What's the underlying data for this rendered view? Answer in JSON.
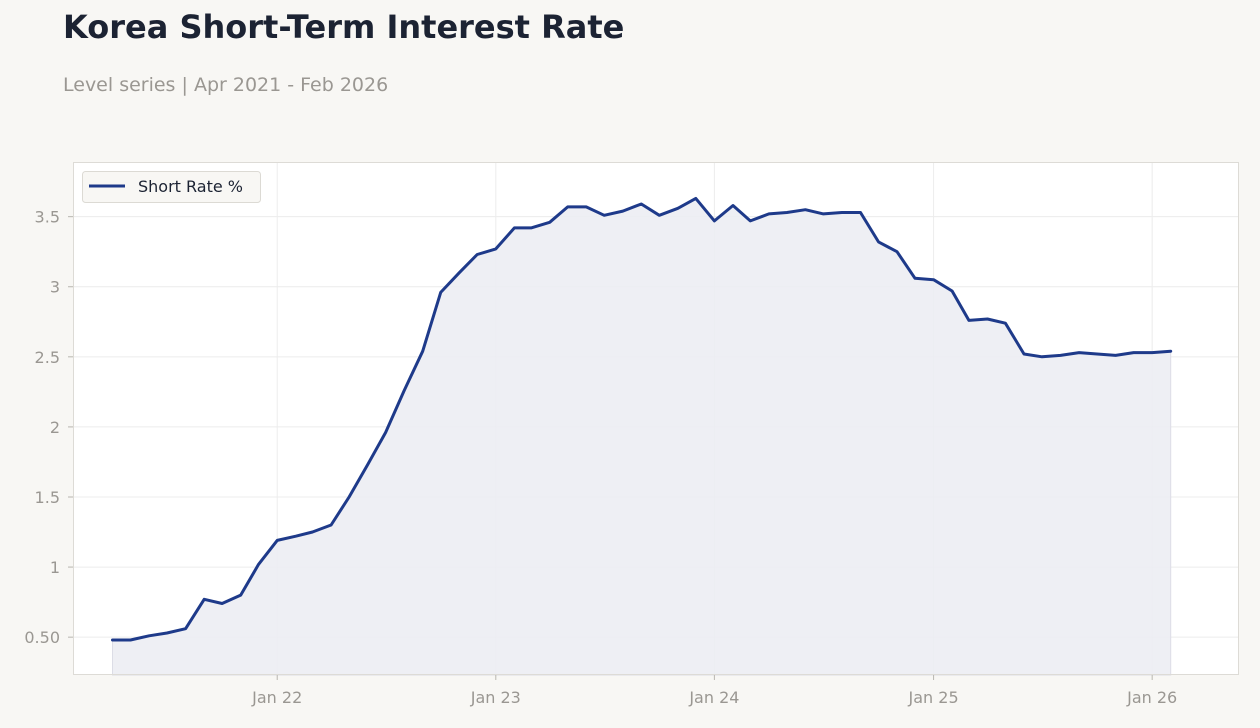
{
  "header": {
    "title": "Korea Short-Term Interest Rate",
    "subtitle": "Level series | Apr 2021 - Feb 2026"
  },
  "colors": {
    "background": "#f8f7f4",
    "plot_background": "#ffffff",
    "line": "#1e3a8a",
    "fill": "#ecedf3",
    "grid": "#ececec",
    "axis_text": "#9a9792",
    "title_text": "#1c2333"
  },
  "chart_data": {
    "type": "area",
    "title": "Korea Short-Term Interest Rate",
    "subtitle": "Level series | Apr 2021 - Feb 2026",
    "xlabel": "",
    "ylabel": "",
    "xlim": [
      "2021-01-25",
      "2026-05-26"
    ],
    "ylim": [
      0.23,
      3.89
    ],
    "grid": true,
    "legend": {
      "position": "top-left",
      "entries": [
        "Short Rate %"
      ]
    },
    "x_ticks": [
      {
        "date": "2022-01-01",
        "label": "Jan 22"
      },
      {
        "date": "2023-01-01",
        "label": "Jan 23"
      },
      {
        "date": "2024-01-01",
        "label": "Jan 24"
      },
      {
        "date": "2025-01-01",
        "label": "Jan 25"
      },
      {
        "date": "2026-01-01",
        "label": "Jan 26"
      }
    ],
    "y_ticks": [
      {
        "value": 0.5,
        "label": "0.50"
      },
      {
        "value": 1,
        "label": "1"
      },
      {
        "value": 1.5,
        "label": "1.5"
      },
      {
        "value": 2,
        "label": "2"
      },
      {
        "value": 2.5,
        "label": "2.5"
      },
      {
        "value": 3,
        "label": "3"
      },
      {
        "value": 3.5,
        "label": "3.5"
      }
    ],
    "series": [
      {
        "name": "Short Rate %",
        "x": [
          "2021-04-01",
          "2021-05-01",
          "2021-06-01",
          "2021-07-01",
          "2021-08-01",
          "2021-09-01",
          "2021-10-01",
          "2021-11-01",
          "2021-12-01",
          "2022-01-01",
          "2022-02-01",
          "2022-03-01",
          "2022-04-01",
          "2022-05-01",
          "2022-06-01",
          "2022-07-01",
          "2022-08-01",
          "2022-09-01",
          "2022-10-01",
          "2022-11-01",
          "2022-12-01",
          "2023-01-01",
          "2023-02-01",
          "2023-03-01",
          "2023-04-01",
          "2023-05-01",
          "2023-06-01",
          "2023-07-01",
          "2023-08-01",
          "2023-09-01",
          "2023-10-01",
          "2023-11-01",
          "2023-12-01",
          "2024-01-01",
          "2024-02-01",
          "2024-03-01",
          "2024-04-01",
          "2024-05-01",
          "2024-06-01",
          "2024-07-01",
          "2024-08-01",
          "2024-09-01",
          "2024-10-01",
          "2024-11-01",
          "2024-12-01",
          "2025-01-01",
          "2025-02-01",
          "2025-03-01",
          "2025-04-01",
          "2025-05-01",
          "2025-06-01",
          "2025-07-01",
          "2025-08-01",
          "2025-09-01",
          "2025-10-01",
          "2025-11-01",
          "2025-12-01",
          "2026-01-01",
          "2026-02-01"
        ],
        "values": [
          0.48,
          0.48,
          0.51,
          0.53,
          0.56,
          0.77,
          0.74,
          0.8,
          1.02,
          1.19,
          1.22,
          1.25,
          1.3,
          1.5,
          1.73,
          1.96,
          2.26,
          2.54,
          2.96,
          3.1,
          3.23,
          3.27,
          3.42,
          3.42,
          3.46,
          3.57,
          3.57,
          3.51,
          3.54,
          3.59,
          3.51,
          3.56,
          3.63,
          3.47,
          3.58,
          3.47,
          3.52,
          3.53,
          3.55,
          3.52,
          3.53,
          3.53,
          3.32,
          3.25,
          3.06,
          3.05,
          2.97,
          2.76,
          2.77,
          2.74,
          2.52,
          2.5,
          2.51,
          2.53,
          2.52,
          2.51,
          2.53,
          2.53,
          2.54
        ]
      }
    ]
  }
}
